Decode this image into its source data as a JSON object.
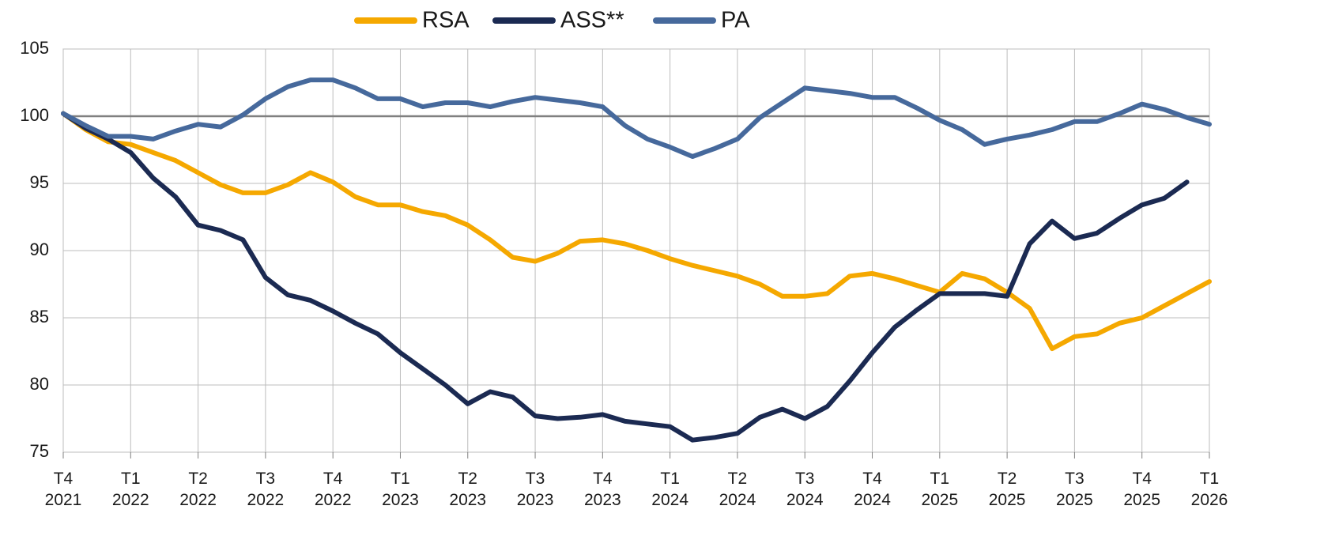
{
  "chart_data": {
    "type": "line",
    "categories": [
      "T4\n2021",
      null,
      null,
      "T1\n2022",
      null,
      null,
      "T2\n2022",
      null,
      null,
      "T3\n2022",
      null,
      null,
      "T4\n2022",
      null,
      null,
      "T1\n2023",
      null,
      null,
      "T2\n2023",
      null,
      null,
      "T3\n2023",
      null,
      null,
      "T4\n2023",
      null,
      null,
      "T1\n2024",
      null,
      null,
      "T2\n2024",
      null,
      null,
      "T3\n2024",
      null,
      null,
      "T4\n2024",
      null,
      null,
      "T1\n2025",
      null,
      null,
      "T2\n2025",
      null,
      null,
      "T3\n2025",
      null,
      null,
      "T4\n2025",
      null,
      null,
      "T1\n2026"
    ],
    "series": [
      {
        "name": "RSA",
        "color": "#f5a800",
        "values": [
          100.2,
          99.0,
          98.1,
          97.9,
          97.3,
          96.7,
          95.8,
          94.9,
          94.3,
          94.3,
          94.9,
          95.8,
          95.1,
          94.0,
          93.4,
          93.4,
          92.9,
          92.6,
          91.9,
          90.8,
          89.5,
          89.2,
          89.8,
          90.7,
          90.8,
          90.5,
          90.0,
          89.4,
          88.9,
          88.5,
          88.1,
          87.5,
          86.6,
          86.6,
          86.8,
          88.1,
          88.3,
          87.9,
          87.4,
          86.9,
          88.3,
          87.9,
          86.9,
          85.7,
          82.7,
          83.6,
          83.8,
          84.6,
          85.0,
          85.9,
          86.8,
          87.7
        ]
      },
      {
        "name": "ASS**",
        "color": "#1b2a52",
        "values": [
          100.2,
          99.1,
          98.3,
          97.3,
          95.4,
          94.0,
          91.9,
          91.5,
          90.8,
          88.0,
          86.7,
          86.3,
          85.5,
          84.6,
          83.8,
          82.4,
          81.2,
          80.0,
          78.6,
          79.5,
          79.1,
          77.7,
          77.5,
          77.6,
          77.8,
          77.3,
          77.1,
          76.9,
          75.9,
          76.1,
          76.4,
          77.6,
          78.2,
          77.5,
          78.4,
          80.3,
          82.4,
          84.3,
          85.6,
          86.8,
          86.8,
          86.8,
          86.6,
          90.5,
          92.2,
          90.9,
          91.3,
          92.4,
          93.4,
          93.9,
          95.1,
          null
        ]
      },
      {
        "name": "PA",
        "color": "#46699c",
        "values": [
          100.2,
          99.3,
          98.5,
          98.5,
          98.3,
          98.9,
          99.4,
          99.2,
          100.1,
          101.3,
          102.2,
          102.7,
          102.7,
          102.1,
          101.3,
          101.3,
          100.7,
          101.0,
          101.0,
          100.7,
          101.1,
          101.4,
          101.2,
          101.0,
          100.7,
          99.3,
          98.3,
          97.7,
          97.0,
          97.6,
          98.3,
          99.9,
          101.0,
          102.1,
          101.9,
          101.7,
          101.4,
          101.4,
          100.6,
          99.7,
          99.0,
          97.9,
          98.3,
          98.6,
          99.0,
          99.6,
          99.6,
          100.2,
          100.9,
          100.5,
          99.9,
          99.4
        ]
      }
    ],
    "reference_line": 100,
    "ylim": [
      75,
      105
    ],
    "yticks": [
      75,
      80,
      85,
      90,
      95,
      100,
      105
    ],
    "grid": true,
    "legend": "top"
  }
}
